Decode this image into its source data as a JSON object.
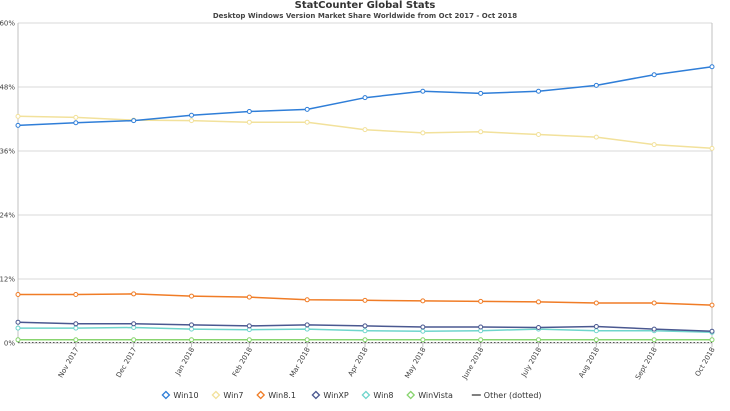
{
  "chart_data": {
    "type": "line",
    "title": "StatCounter Global Stats",
    "subtitle": "Desktop Windows Version Market Share Worldwide from Oct 2017 - Oct 2018",
    "categories": [
      "Oct 2017",
      "Nov 2017",
      "Dec 2017",
      "Jan 2018",
      "Feb 2018",
      "Mar 2018",
      "Apr 2018",
      "May 2018",
      "June 2018",
      "July 2018",
      "Aug 2018",
      "Sept 2018",
      "Oct 2018"
    ],
    "x_tick_labels": [
      "Nov 2017",
      "Dec 2017",
      "Jan 2018",
      "Feb 2018",
      "Mar 2018",
      "Apr 2018",
      "May 2018",
      "June 2018",
      "July 2018",
      "Aug 2018",
      "Sept 2018",
      "Oct 2018"
    ],
    "ylim": [
      0,
      60
    ],
    "y_ticks": [
      0,
      12,
      24,
      36,
      48,
      60
    ],
    "y_tick_labels": [
      "0%",
      "12%",
      "24%",
      "36%",
      "48%",
      "60%"
    ],
    "grid": true,
    "legend_position": "bottom",
    "series": [
      {
        "name": "Win10",
        "color": "#2f7ed8",
        "style": "solid",
        "values": [
          40.8,
          41.3,
          41.7,
          42.7,
          43.4,
          43.8,
          46.0,
          47.2,
          46.8,
          47.2,
          48.3,
          50.3,
          51.8
        ]
      },
      {
        "name": "Win7",
        "color": "#f2e19b",
        "style": "solid",
        "values": [
          42.5,
          42.3,
          41.8,
          41.7,
          41.4,
          41.4,
          40.0,
          39.4,
          39.6,
          39.1,
          38.6,
          37.2,
          36.5
        ]
      },
      {
        "name": "Win8.1",
        "color": "#f07c26",
        "style": "solid",
        "values": [
          9.1,
          9.1,
          9.2,
          8.8,
          8.6,
          8.1,
          8.0,
          7.9,
          7.8,
          7.7,
          7.5,
          7.5,
          7.1
        ]
      },
      {
        "name": "WinXP",
        "color": "#4a5890",
        "style": "solid",
        "values": [
          3.9,
          3.6,
          3.6,
          3.4,
          3.2,
          3.4,
          3.2,
          3.0,
          3.0,
          2.9,
          3.1,
          2.6,
          2.2
        ]
      },
      {
        "name": "Win8",
        "color": "#6fd5cc",
        "style": "solid",
        "values": [
          2.8,
          2.8,
          2.9,
          2.6,
          2.5,
          2.6,
          2.3,
          2.2,
          2.3,
          2.6,
          2.3,
          2.3,
          2.0
        ]
      },
      {
        "name": "WinVista",
        "color": "#88d46e",
        "style": "solid",
        "values": [
          0.6,
          0.6,
          0.6,
          0.6,
          0.6,
          0.6,
          0.6,
          0.6,
          0.6,
          0.6,
          0.6,
          0.6,
          0.6
        ]
      },
      {
        "name": "Other (dotted)",
        "color": "#555555",
        "style": "dotted",
        "values": [
          0.1,
          0.1,
          0.1,
          0.1,
          0.1,
          0.1,
          0.1,
          0.1,
          0.1,
          0.1,
          0.1,
          0.1,
          0.1
        ]
      }
    ]
  }
}
